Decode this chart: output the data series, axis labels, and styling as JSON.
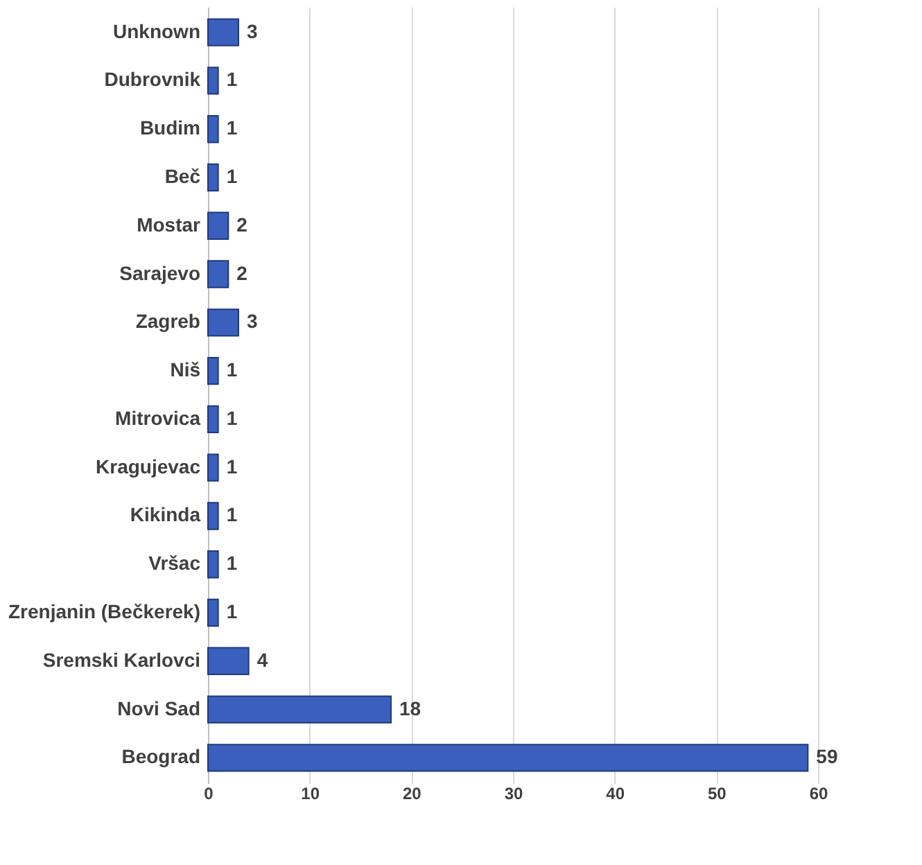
{
  "chart_data": {
    "type": "bar",
    "orientation": "horizontal",
    "categories": [
      "Unknown",
      "Dubrovnik",
      "Budim",
      "Beč",
      "Mostar",
      "Sarajevo",
      "Zagreb",
      "Niš",
      "Mitrovica",
      "Kragujevac",
      "Kikinda",
      "Vršac",
      "Zrenjanin (Bečkerek)",
      "Sremski Karlovci",
      "Novi Sad",
      "Beograd"
    ],
    "values": [
      3,
      1,
      1,
      1,
      2,
      2,
      3,
      1,
      1,
      1,
      1,
      1,
      1,
      4,
      18,
      59
    ],
    "color": "#3b5fbd",
    "xlim": [
      0,
      60
    ],
    "xticks": [
      0,
      10,
      20,
      30,
      40,
      50,
      60
    ],
    "grid": "x",
    "data_labels": true
  }
}
